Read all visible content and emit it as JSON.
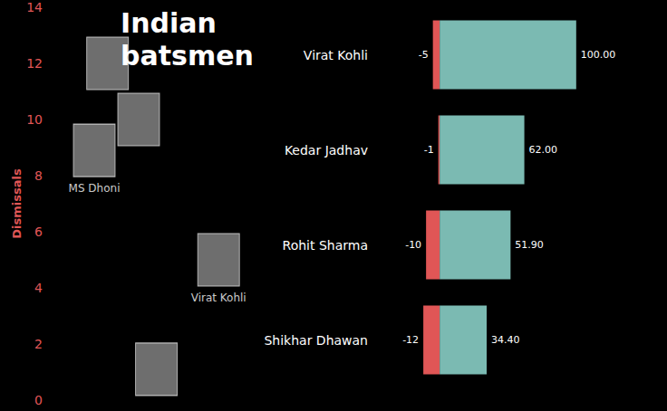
{
  "chart_data": [
    {
      "type": "scatter",
      "title": "Indian batsmen",
      "y_label": "Dismissals",
      "x": [
        2.6,
        4.0,
        2.0,
        7.6,
        4.8
      ],
      "values": [
        12.0,
        10.0,
        8.9,
        5.0,
        1.1
      ],
      "point_labels": [
        null,
        null,
        "MS Dhoni",
        "Virat Kohli",
        null
      ],
      "xlim": [
        0,
        10
      ],
      "ylim": [
        0,
        14
      ],
      "yticks": [
        0,
        2,
        4,
        6,
        8,
        10,
        12,
        14
      ],
      "tick_labels": "y",
      "color": "#8a8a8a",
      "grid": false
    },
    {
      "type": "bar",
      "orientation": "horizontal",
      "stacked": true,
      "categories": [
        "Virat Kohli",
        "Kedar Jadhav",
        "Rohit Sharma",
        "Shikhar Dhawan"
      ],
      "series": [
        {
          "color": "#e05656",
          "values": [
            -5,
            -1,
            -10,
            -12
          ]
        },
        {
          "color": "#7bbab2",
          "values": [
            100,
            62,
            51.9,
            34.4
          ],
          "value_labels": [
            "100.00",
            "62.00",
            "51.90",
            "34.40"
          ]
        }
      ],
      "xlim": [
        -30,
        130
      ],
      "data_labels": true,
      "tick_labels": "y",
      "grid": false
    }
  ]
}
